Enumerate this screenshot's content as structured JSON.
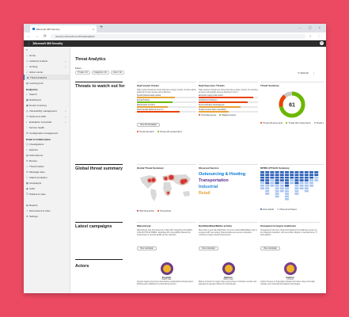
{
  "browser": {
    "tab_title": "Microsoft 365 Security",
    "tab_close": "×",
    "new_tab": "+",
    "window_controls": "– ▢ ×",
    "nav_glyphs": "← → ⟳ ⌂",
    "address": "security.microsoft.com/threatanalytics",
    "address_icons": "☆ ⋮"
  },
  "app": {
    "waffle": "⋮⋮",
    "title": "Microsoft 365 Security",
    "user_initial": "R"
  },
  "sidebar": {
    "collapse": "≡",
    "items": [
      {
        "icon": "⌂",
        "label": "Home",
        "chev": ""
      },
      {
        "icon": "⚠",
        "label": "Incidents & alerts",
        "chev": "⌄"
      },
      {
        "icon": "⌕",
        "label": "Hunting",
        "chev": "⌄"
      },
      {
        "icon": "✓",
        "label": "Action center",
        "chev": ""
      },
      {
        "icon": "◆",
        "label": "Threat analytics",
        "chev": "",
        "active": true
      },
      {
        "icon": "▤",
        "label": "Learning hub",
        "chev": ""
      },
      {
        "icon": "",
        "label": "Endpoints",
        "chev": "",
        "header": true
      },
      {
        "icon": "⌕",
        "label": "Search",
        "chev": ""
      },
      {
        "icon": "▦",
        "label": "Dashboard",
        "chev": ""
      },
      {
        "icon": "▣",
        "label": "Device inventory",
        "chev": ""
      },
      {
        "icon": "◎",
        "label": "Vulnerability management",
        "chev": "⌄"
      },
      {
        "icon": "☍",
        "label": "Partners & APIs",
        "chev": "⌄"
      },
      {
        "icon": "◐",
        "label": "Evaluation & tutorials",
        "chev": "⌄"
      },
      {
        "icon": "♡",
        "label": "Service health",
        "chev": ""
      },
      {
        "icon": "⚙",
        "label": "Configuration management",
        "chev": ""
      },
      {
        "icon": "",
        "label": "Email & Collaboration",
        "chev": "",
        "header": true
      },
      {
        "icon": "◷",
        "label": "Investigations",
        "chev": ""
      },
      {
        "icon": "⌕",
        "label": "Explorer",
        "chev": ""
      },
      {
        "icon": "▤",
        "label": "Submissions",
        "chev": ""
      },
      {
        "icon": "✉",
        "label": "Review",
        "chev": ""
      },
      {
        "icon": "◇",
        "label": "Threat tracker",
        "chev": ""
      },
      {
        "icon": "✉",
        "label": "Message trace",
        "chev": ""
      },
      {
        "icon": "⚐",
        "label": "Attack simulation",
        "chev": ""
      },
      {
        "icon": "▦",
        "label": "Campaigns",
        "chev": ""
      },
      {
        "icon": "◉",
        "label": "Audit",
        "chev": ""
      },
      {
        "icon": "☰",
        "label": "Policies & rules",
        "chev": ""
      },
      {
        "icon": "",
        "label": "",
        "chev": "",
        "header": true
      },
      {
        "icon": "▤",
        "label": "Reports",
        "chev": ""
      },
      {
        "icon": "✓",
        "label": "Permissions & roles",
        "chev": ""
      },
      {
        "icon": "⚙",
        "label": "Settings",
        "chev": ""
      }
    ]
  },
  "page": {
    "title": "Threat Analytics",
    "filters_label": "Filters:",
    "filters": [
      "Threats: All",
      "Categories: All",
      "Actors: All"
    ],
    "refresh": "↻ Refresh",
    "more": "⋮",
    "sections": {
      "threats": "Threats to watch out for",
      "global": "Global threat summary",
      "campaigns": "Latest campaigns",
      "actors": "Actors"
    }
  },
  "high_impact": {
    "title": "High impact threats",
    "desc": "High impact threats are those that have a large number of active alerts attached to them devices and mailboxes.",
    "rows": [
      {
        "label": "Sysrds (Ransomware) variant",
        "value": 0.64,
        "color": "#e8a33b"
      },
      {
        "label": "Emotet/Trickbot",
        "value": 0.6,
        "color": "#6bb700"
      },
      {
        "label": "Ransomware & Actors",
        "value": 0.52,
        "color": "#e8a33b"
      },
      {
        "label": "Noobs Emails (Refined) new to 2",
        "value": 0.72,
        "color": "#ea4300"
      }
    ],
    "button": "View all campaigns",
    "legend": [
      {
        "label": "Threats with alerts",
        "color": "#ea4300"
      },
      {
        "label": "Threats with resolved alerts",
        "color": "#6bb700"
      }
    ]
  },
  "high_exposure": {
    "title": "High Exposure Threats",
    "desc": "High exposure threats are those that have a large number of mounting an issue vulnerability devices attached to them.",
    "rows": [
      {
        "label": "Enterprise supply chain actors",
        "value": 0.92,
        "color": "#ea4300"
      },
      {
        "label": "SolarWinds (Nobelium)",
        "value": 0.82,
        "color": "#ea4300"
      },
      {
        "label": "Dev0 & Windows advantageous",
        "value": 0.7,
        "color": "#e8a33b"
      },
      {
        "label": "Smaller Gods & 2021 vulnerability",
        "value": 0.5,
        "color": "#e8a33b"
      }
    ],
    "legend": [
      {
        "label": "Vulnerable devices",
        "color": "#ea4300"
      },
      {
        "label": "Mitigated devices",
        "color": "#6bb700"
      }
    ]
  },
  "threat_summary": {
    "title": "Threat Summary",
    "total": "61",
    "gauge": [
      {
        "value": 0.72,
        "color": "#6bb700"
      },
      {
        "value": 0.17,
        "color": "#ea4300"
      },
      {
        "value": 0.11,
        "color": "#c8c8c8"
      }
    ],
    "legend": [
      {
        "label": "Threats with active alerts",
        "color": "#ea4300"
      },
      {
        "label": "Threats with resolved alerts",
        "color": "#6bb700"
      },
      {
        "label": "Threats with no alerts",
        "color": "#a6a6a6"
      }
    ]
  },
  "global_map": {
    "title": "Global Threat Summary",
    "hotspots": [
      {
        "lon": -100,
        "lat": 40,
        "r": 2
      },
      {
        "lon": -75,
        "lat": 42,
        "r": 2.5
      },
      {
        "lon": 2,
        "lat": 50,
        "r": 2
      },
      {
        "lon": 37,
        "lat": 56,
        "r": 3
      },
      {
        "lon": 110,
        "lat": 33,
        "r": 3
      },
      {
        "lon": 127,
        "lat": 38,
        "r": 2
      },
      {
        "lon": 18,
        "lat": -28,
        "r": 1.5
      }
    ],
    "legend": [
      {
        "label": "High threat activity",
        "color": "#d13438"
      },
      {
        "label": "Threat activity",
        "color": "#ea4300"
      }
    ]
  },
  "observed_sectors": {
    "title": "Observed Sectors",
    "sectors": [
      {
        "name": "Outsourcing & Hosting",
        "color": "#0078d4"
      },
      {
        "name": "Transportation",
        "color": "#5c2d91"
      },
      {
        "name": "Industrial",
        "color": "#2b88d8"
      },
      {
        "name": "Retail",
        "color": "#e8a33b"
      }
    ]
  },
  "mitre": {
    "title": "MITRE ATT&CK Summary",
    "columns": [
      7,
      9,
      6,
      10,
      8,
      11,
      5,
      9,
      7,
      8,
      6,
      4
    ],
    "legend": [
      {
        "label": "Active attacks",
        "color": "#2b5fb8"
      },
      {
        "label": "Observed techniques",
        "color": "#a8c5ef"
      }
    ]
  },
  "campaigns": [
    {
      "title": "WannaCrypt",
      "desc": "WannaCrypt was first observed in May 2017 targeting vulnerability CVE-2017-0144 SMBv1. Exploiting this vulnerability allowed the ransomware to spread rapidly across networks.",
      "button": "View campaign"
    },
    {
      "title": "DarkSide/BlackMatter activity",
      "desc": "More than a year after DarkSide, the group behind BlackMatter has re-emerged with new tooling. Ransomware-as-a-service operators continue to target critical infrastructure.",
      "button": "View campaign"
    },
    {
      "title": "Orangeworm targets healthcare",
      "desc": "Orangeworm has been observed targeting the healthcare sector via the Kwampirs backdoor, with secondary targets in manufacturing, IT and logistics.",
      "button": "View campaign"
    }
  ],
  "actors": [
    {
      "name": "Krypton",
      "sub": "Nation state",
      "desc": "Krypton targets government and defense organizations through spear-phishing and exploitation of public-facing servers.",
      "bg": "#6d3b86",
      "mark": "#f0b428",
      "button": "View more"
    },
    {
      "name": "Barium",
      "sub": "Nation state",
      "desc": "Barium is known for supply chain compromises of software vendors and targeting the gaming industry for financial gain.",
      "bg": "#6d3b86",
      "mark": "#f0b428",
      "button": "View more"
    },
    {
      "name": "Carbon",
      "sub": "Criminal",
      "desc": "Carbon focuses on financially motivated intrusions using commodity malware and credential theft against retail targets.",
      "bg": "#7a3e8c",
      "mark": "#f0b428",
      "button": "View more"
    }
  ]
}
